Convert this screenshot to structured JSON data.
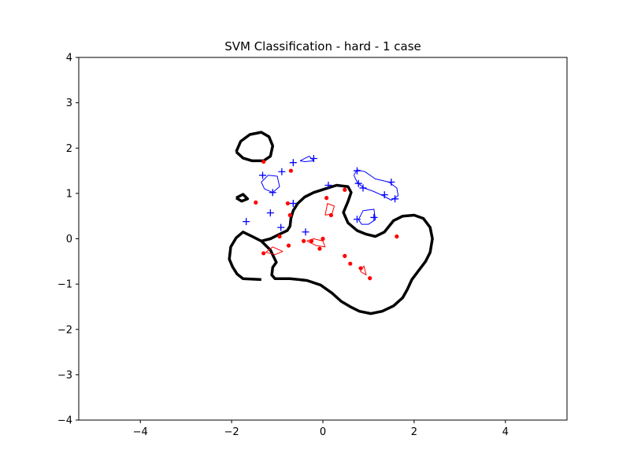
{
  "chart_data": {
    "type": "scatter",
    "title": "SVM Classification - hard - 1 case",
    "xlabel": "",
    "ylabel": "",
    "xlim": [
      -5.35,
      5.35
    ],
    "ylim": [
      -4,
      4
    ],
    "x_ticks": [
      -4,
      -2,
      0,
      2,
      4
    ],
    "x_tick_labels": [
      "−4",
      "−2",
      "0",
      "2",
      "4"
    ],
    "y_ticks": [
      -4,
      -3,
      -2,
      -1,
      0,
      1,
      2,
      3,
      4
    ],
    "y_tick_labels": [
      "−4",
      "−3",
      "−2",
      "−1",
      "0",
      "1",
      "2",
      "3",
      "4"
    ],
    "grid": false,
    "colors": {
      "positive": "#0000ff",
      "negative": "#ff0000",
      "boundary": "#000000"
    },
    "series": [
      {
        "marker": "plus",
        "color": "#0000ff",
        "points": [
          [
            -1.32,
            1.4
          ],
          [
            -0.9,
            1.48
          ],
          [
            -0.65,
            1.68
          ],
          [
            -0.2,
            1.77
          ],
          [
            -1.1,
            1.02
          ],
          [
            -1.15,
            0.57
          ],
          [
            -1.68,
            0.38
          ],
          [
            -0.38,
            0.15
          ],
          [
            -0.65,
            0.78
          ],
          [
            0.12,
            1.18
          ],
          [
            0.75,
            1.5
          ],
          [
            0.78,
            1.22
          ],
          [
            0.88,
            1.12
          ],
          [
            0.75,
            0.43
          ],
          [
            1.12,
            0.47
          ],
          [
            1.35,
            0.97
          ],
          [
            1.5,
            1.25
          ],
          [
            1.58,
            0.88
          ],
          [
            -0.92,
            0.25
          ]
        ]
      },
      {
        "marker": "dot",
        "color": "#ff0000",
        "points": [
          [
            -1.3,
            1.7
          ],
          [
            -0.7,
            1.5
          ],
          [
            -1.47,
            0.8
          ],
          [
            -0.77,
            0.78
          ],
          [
            -0.72,
            0.52
          ],
          [
            0.08,
            0.9
          ],
          [
            0.18,
            0.52
          ],
          [
            0.48,
            1.08
          ],
          [
            -0.95,
            0.05
          ],
          [
            -0.75,
            -0.15
          ],
          [
            -1.3,
            -0.32
          ],
          [
            -0.42,
            -0.05
          ],
          [
            -0.25,
            -0.05
          ],
          [
            0.0,
            0.0
          ],
          [
            -0.07,
            -0.22
          ],
          [
            0.48,
            -0.38
          ],
          [
            0.6,
            -0.55
          ],
          [
            0.83,
            -0.65
          ],
          [
            1.03,
            -0.87
          ],
          [
            1.62,
            0.05
          ]
        ]
      }
    ],
    "contours": [
      {
        "level": "decision-boundary",
        "color": "#000000",
        "width": 3.5,
        "points": [
          [
            -1.75,
            0.15
          ],
          [
            -1.55,
            0.05
          ],
          [
            -1.35,
            -0.05
          ],
          [
            -1.15,
            -0.25
          ],
          [
            -1.02,
            -0.52
          ],
          [
            -1.1,
            -0.63
          ],
          [
            -1.12,
            -0.8
          ],
          [
            -1.05,
            -0.88
          ],
          [
            -0.72,
            -0.88
          ],
          [
            -0.35,
            -0.92
          ],
          [
            -0.05,
            -1.02
          ],
          [
            0.2,
            -1.2
          ],
          [
            0.4,
            -1.38
          ],
          [
            0.6,
            -1.5
          ],
          [
            0.8,
            -1.6
          ],
          [
            1.05,
            -1.65
          ],
          [
            1.3,
            -1.6
          ],
          [
            1.55,
            -1.48
          ],
          [
            1.75,
            -1.3
          ],
          [
            1.85,
            -1.12
          ],
          [
            1.95,
            -0.9
          ],
          [
            2.1,
            -0.7
          ],
          [
            2.25,
            -0.5
          ],
          [
            2.35,
            -0.3
          ],
          [
            2.4,
            0.0
          ],
          [
            2.35,
            0.25
          ],
          [
            2.2,
            0.45
          ],
          [
            2.0,
            0.52
          ],
          [
            1.75,
            0.5
          ],
          [
            1.55,
            0.4
          ],
          [
            1.35,
            0.15
          ],
          [
            1.15,
            0.05
          ],
          [
            0.95,
            0.1
          ],
          [
            0.75,
            0.18
          ],
          [
            0.55,
            0.35
          ],
          [
            0.45,
            0.58
          ],
          [
            0.55,
            0.82
          ],
          [
            0.62,
            1.02
          ],
          [
            0.55,
            1.15
          ],
          [
            0.3,
            1.18
          ],
          [
            0.05,
            1.1
          ],
          [
            -0.2,
            1.02
          ],
          [
            -0.4,
            0.92
          ],
          [
            -0.55,
            0.78
          ],
          [
            -0.65,
            0.62
          ],
          [
            -0.7,
            0.45
          ],
          [
            -0.72,
            0.28
          ],
          [
            -0.78,
            0.18
          ],
          [
            -0.95,
            0.1
          ],
          [
            -1.15,
            0.0
          ],
          [
            -1.35,
            -0.05
          ],
          [
            -1.55,
            0.05
          ],
          [
            -1.75,
            0.15
          ],
          [
            -1.9,
            0.02
          ],
          [
            -2.02,
            -0.18
          ],
          [
            -2.05,
            -0.45
          ],
          [
            -1.98,
            -0.62
          ],
          [
            -1.88,
            -0.78
          ],
          [
            -1.75,
            -0.88
          ],
          [
            -1.35,
            -0.9
          ]
        ]
      },
      {
        "level": "decision-boundary",
        "color": "#000000",
        "width": 3.5,
        "points": [
          [
            -1.9,
            1.92
          ],
          [
            -1.8,
            2.15
          ],
          [
            -1.6,
            2.3
          ],
          [
            -1.35,
            2.35
          ],
          [
            -1.18,
            2.25
          ],
          [
            -1.1,
            2.05
          ],
          [
            -1.15,
            1.82
          ],
          [
            -1.3,
            1.72
          ],
          [
            -1.55,
            1.72
          ],
          [
            -1.75,
            1.78
          ],
          [
            -1.9,
            1.92
          ]
        ]
      },
      {
        "level": "decision-boundary",
        "color": "#000000",
        "width": 3.5,
        "points": [
          [
            -1.9,
            0.9
          ],
          [
            -1.75,
            0.98
          ],
          [
            -1.65,
            0.88
          ],
          [
            -1.78,
            0.83
          ],
          [
            -1.9,
            0.9
          ]
        ]
      },
      {
        "level": "positive-margin",
        "color": "#0000ff",
        "width": 1,
        "points": [
          [
            -1.35,
            1.25
          ],
          [
            -1.2,
            1.4
          ],
          [
            -1.0,
            1.38
          ],
          [
            -0.95,
            1.15
          ],
          [
            -1.1,
            1.02
          ],
          [
            -1.28,
            1.1
          ],
          [
            -1.35,
            1.25
          ]
        ]
      },
      {
        "level": "positive-margin",
        "color": "#0000ff",
        "width": 1,
        "points": [
          [
            -0.5,
            1.72
          ],
          [
            -0.3,
            1.82
          ],
          [
            -0.2,
            1.72
          ],
          [
            -0.4,
            1.7
          ],
          [
            -0.5,
            1.72
          ]
        ]
      },
      {
        "level": "positive-margin",
        "color": "#0000ff",
        "width": 1,
        "points": [
          [
            0.68,
            1.4
          ],
          [
            0.75,
            1.52
          ],
          [
            0.92,
            1.48
          ],
          [
            1.15,
            1.32
          ],
          [
            1.45,
            1.25
          ],
          [
            1.62,
            1.12
          ],
          [
            1.65,
            0.95
          ],
          [
            1.5,
            0.85
          ],
          [
            1.32,
            0.95
          ],
          [
            1.1,
            1.05
          ],
          [
            0.9,
            1.12
          ],
          [
            0.75,
            1.25
          ],
          [
            0.68,
            1.4
          ]
        ]
      },
      {
        "level": "positive-margin",
        "color": "#0000ff",
        "width": 1,
        "points": [
          [
            0.78,
            0.42
          ],
          [
            0.88,
            0.62
          ],
          [
            1.12,
            0.65
          ],
          [
            1.15,
            0.42
          ],
          [
            1.0,
            0.32
          ],
          [
            0.85,
            0.32
          ],
          [
            0.78,
            0.42
          ]
        ]
      },
      {
        "level": "negative-margin",
        "color": "#ff0000",
        "width": 1,
        "points": [
          [
            0.05,
            0.52
          ],
          [
            0.1,
            0.78
          ],
          [
            0.25,
            0.72
          ],
          [
            0.2,
            0.55
          ],
          [
            0.05,
            0.52
          ]
        ]
      },
      {
        "level": "negative-margin",
        "color": "#ff0000",
        "width": 1,
        "points": [
          [
            -0.35,
            -0.05
          ],
          [
            -0.2,
            0.0
          ],
          [
            0.0,
            -0.05
          ],
          [
            0.05,
            -0.18
          ],
          [
            -0.15,
            -0.15
          ],
          [
            -0.35,
            -0.05
          ]
        ]
      },
      {
        "level": "negative-margin",
        "color": "#ff0000",
        "width": 1,
        "points": [
          [
            -1.25,
            -0.3
          ],
          [
            -1.1,
            -0.18
          ],
          [
            -0.88,
            -0.28
          ],
          [
            -1.05,
            -0.35
          ],
          [
            -1.25,
            -0.3
          ]
        ]
      },
      {
        "level": "negative-margin",
        "color": "#ff0000",
        "width": 1,
        "points": [
          [
            0.82,
            -0.72
          ],
          [
            0.9,
            -0.6
          ],
          [
            0.95,
            -0.8
          ],
          [
            0.82,
            -0.72
          ]
        ]
      }
    ]
  }
}
